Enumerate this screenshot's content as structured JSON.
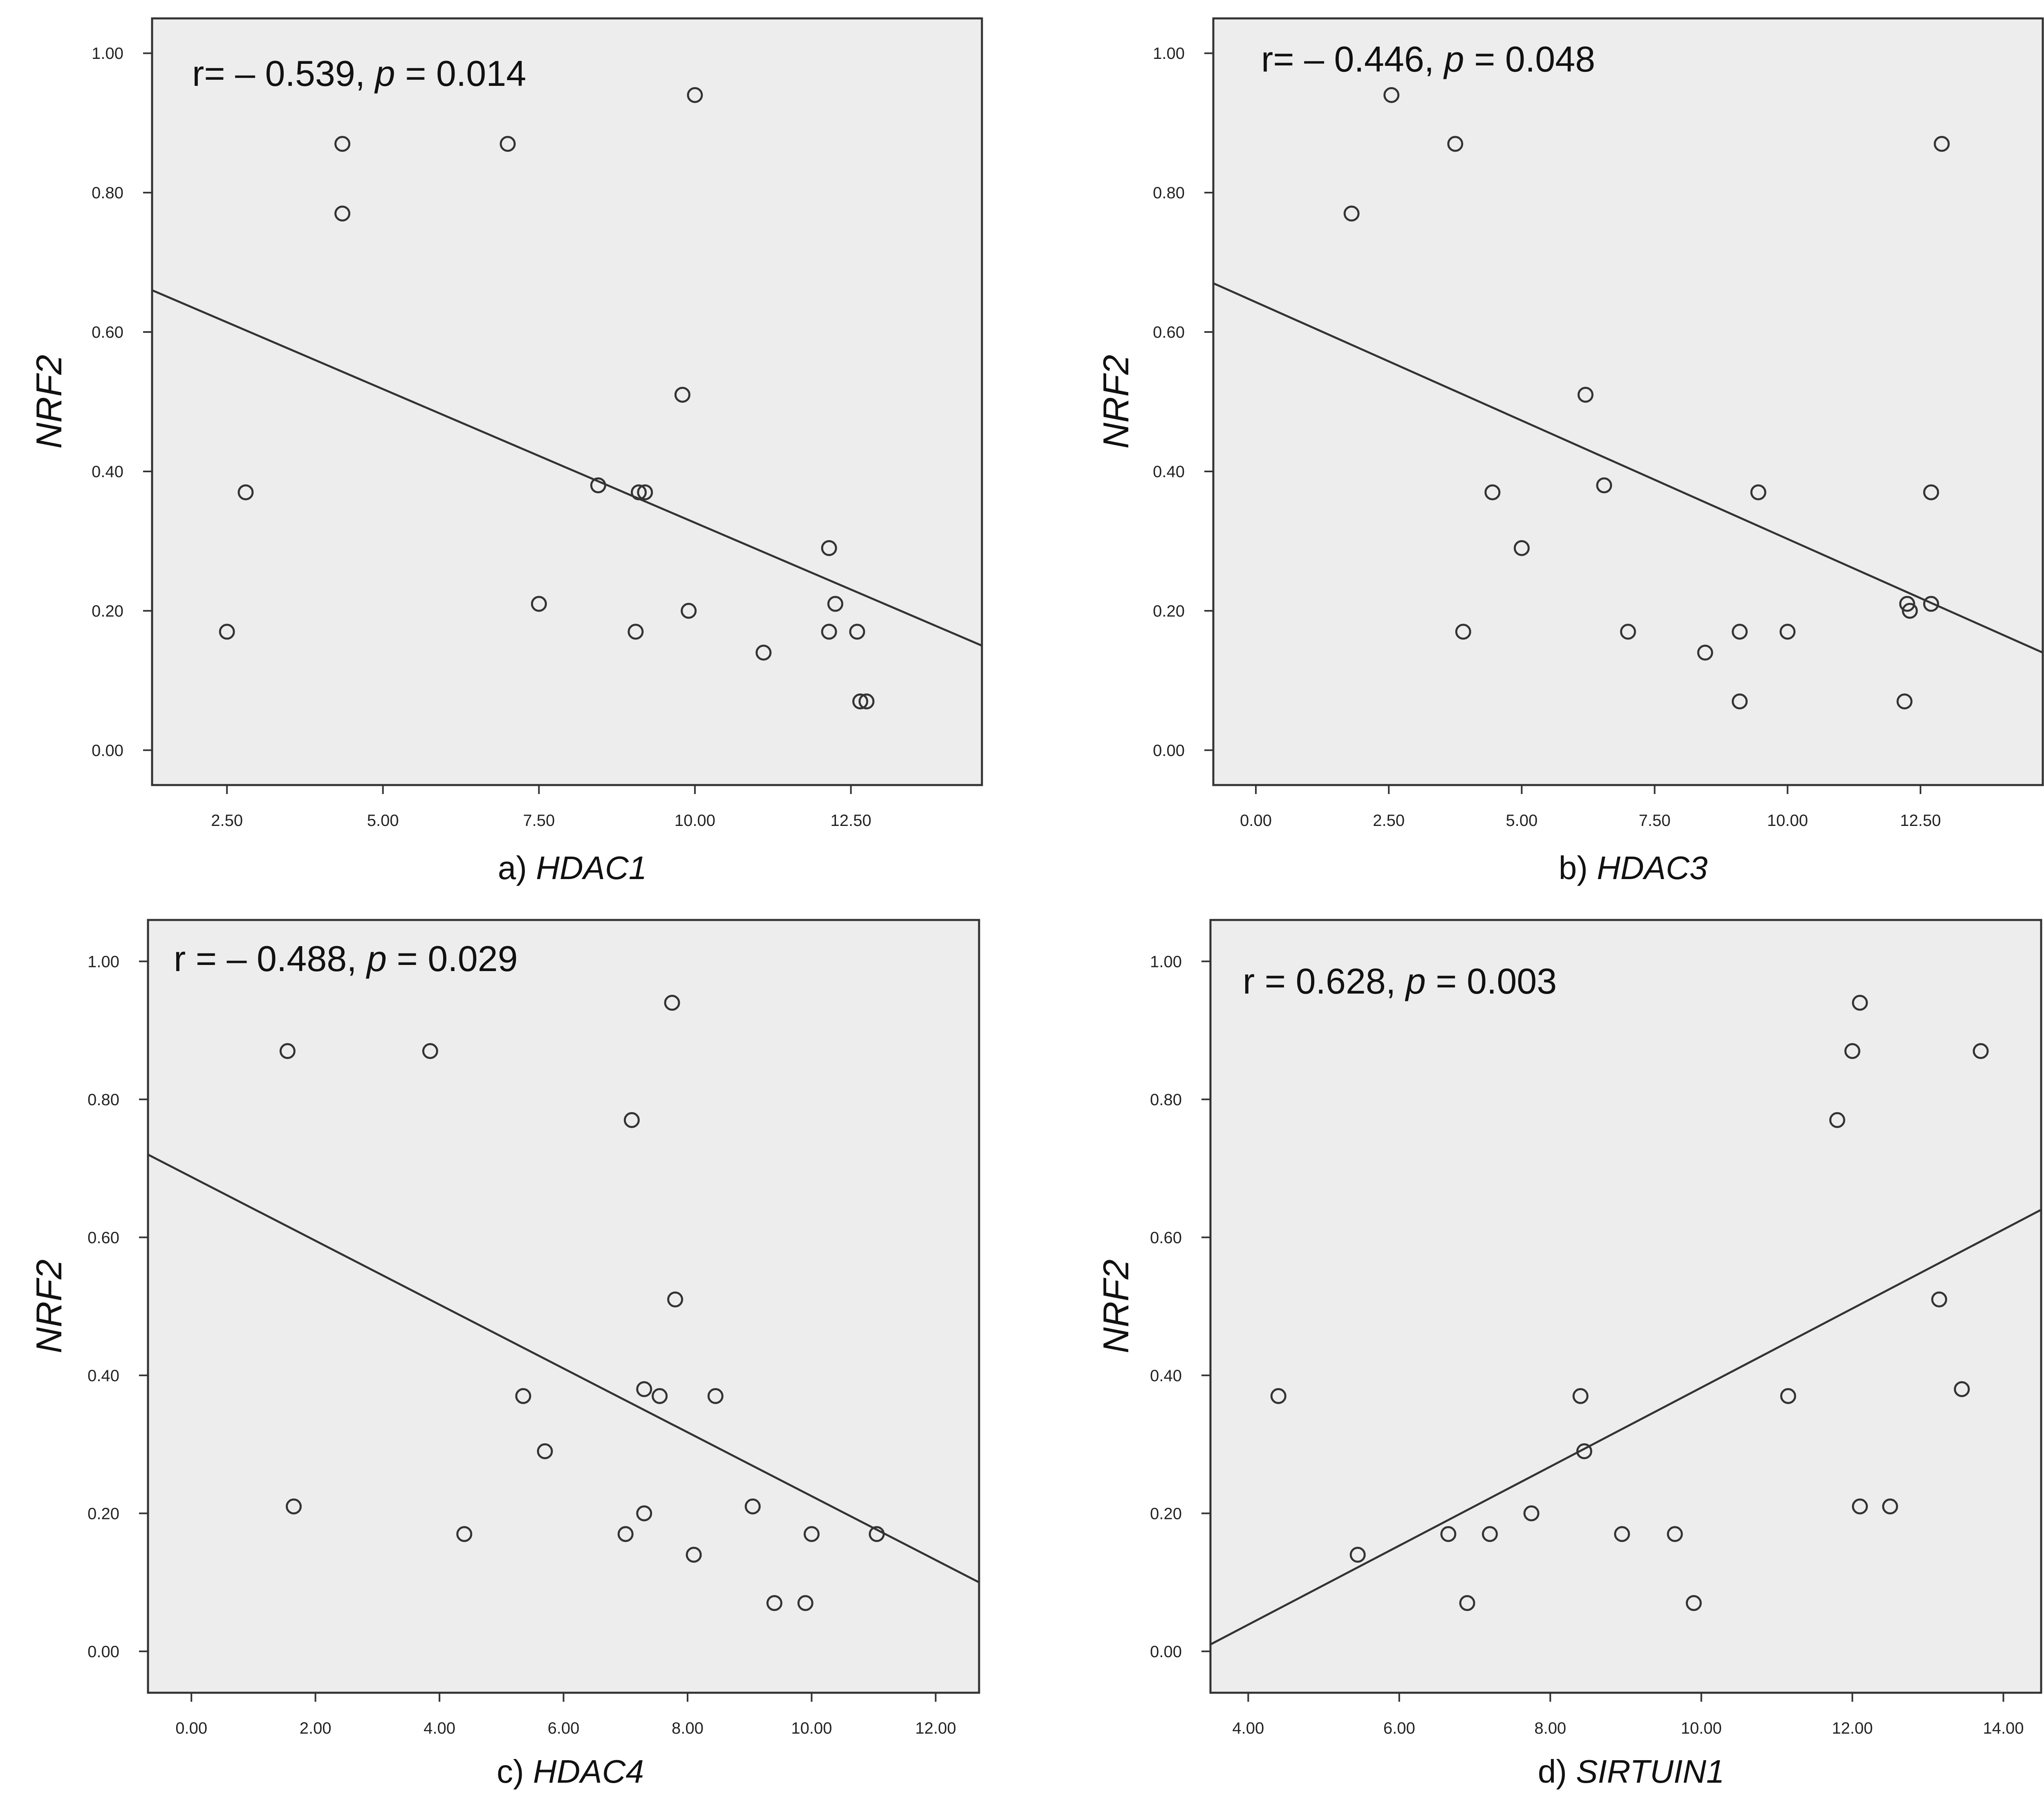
{
  "chart_data": [
    {
      "type": "scatter",
      "caption_prefix": "a) ",
      "caption_gene": "HDAC1",
      "ylabel": "NRF2",
      "annotation": {
        "r_prefix": "r= ",
        "r_value": "– 0.539",
        "sep": ", ",
        "p_label": "p",
        "p_rest": " = 0.014"
      },
      "xlim": [
        1.3,
        14.6
      ],
      "ylim": [
        -0.05,
        1.05
      ],
      "xticks": [
        2.5,
        5,
        7.5,
        10,
        12.5
      ],
      "xtick_labels": [
        "2.50",
        "5.00",
        "7.50",
        "10.00",
        "12.50"
      ],
      "yticks": [
        0,
        0.2,
        0.4,
        0.6,
        0.8,
        1.0
      ],
      "ytick_labels": [
        "0.00",
        "0.20",
        "0.40",
        "0.60",
        "0.80",
        "1.00"
      ],
      "x": [
        2.5,
        2.8,
        4.35,
        4.35,
        7.0,
        7.5,
        8.45,
        9.1,
        9.2,
        9.05,
        9.8,
        9.9,
        10.0,
        11.1,
        12.15,
        12.15,
        12.25,
        12.6,
        12.65,
        12.75
      ],
      "y": [
        0.17,
        0.37,
        0.87,
        0.77,
        0.87,
        0.21,
        0.38,
        0.37,
        0.37,
        0.17,
        0.51,
        0.2,
        0.94,
        0.14,
        0.29,
        0.17,
        0.21,
        0.17,
        0.07,
        0.07
      ],
      "fit": [
        [
          1.3,
          0.66
        ],
        [
          14.6,
          0.15
        ]
      ]
    },
    {
      "type": "scatter",
      "caption_prefix": "b) ",
      "caption_gene": "HDAC3",
      "ylabel": "NRF2",
      "annotation": {
        "r_prefix": "r= ",
        "r_value": "– 0.446",
        "sep": ", ",
        "p_label": "p",
        "p_rest": " = 0.048"
      },
      "xlim": [
        -0.8,
        14.8
      ],
      "ylim": [
        -0.05,
        1.05
      ],
      "xticks": [
        0,
        2.5,
        5,
        7.5,
        10,
        12.5
      ],
      "xtick_labels": [
        "0.00",
        "2.50",
        "5.00",
        "7.50",
        "10.00",
        "12.50"
      ],
      "yticks": [
        0,
        0.2,
        0.4,
        0.6,
        0.8,
        1.0
      ],
      "ytick_labels": [
        "0.00",
        "0.20",
        "0.40",
        "0.60",
        "0.80",
        "1.00"
      ],
      "x": [
        1.8,
        2.55,
        3.75,
        3.9,
        4.45,
        5.0,
        6.2,
        6.55,
        7.0,
        8.45,
        9.1,
        9.1,
        9.45,
        10.0,
        12.2,
        12.25,
        12.3,
        12.7,
        12.7,
        12.9
      ],
      "y": [
        0.77,
        0.94,
        0.87,
        0.17,
        0.37,
        0.29,
        0.51,
        0.38,
        0.17,
        0.14,
        0.17,
        0.07,
        0.37,
        0.17,
        0.07,
        0.21,
        0.2,
        0.37,
        0.21,
        0.87
      ],
      "fit": [
        [
          -0.8,
          0.67
        ],
        [
          14.8,
          0.14
        ]
      ]
    },
    {
      "type": "scatter",
      "caption_prefix": "c) ",
      "caption_gene": "HDAC4",
      "ylabel": "NRF2",
      "annotation": {
        "r_prefix": "r = ",
        "r_value": "– 0.488",
        "sep": ", ",
        "p_label": "p",
        "p_rest": " = 0.029"
      },
      "xlim": [
        -0.7,
        12.7
      ],
      "ylim": [
        -0.06,
        1.06
      ],
      "xticks": [
        0,
        2,
        4,
        6,
        8,
        10,
        12
      ],
      "xtick_labels": [
        "0.00",
        "2.00",
        "4.00",
        "6.00",
        "8.00",
        "10.00",
        "12.00"
      ],
      "yticks": [
        0,
        0.2,
        0.4,
        0.6,
        0.8,
        1.0
      ],
      "ytick_labels": [
        "0.00",
        "0.20",
        "0.40",
        "0.60",
        "0.80",
        "1.00"
      ],
      "x": [
        1.55,
        1.65,
        3.85,
        4.4,
        5.35,
        5.7,
        7.0,
        7.1,
        7.3,
        7.3,
        7.55,
        7.75,
        7.8,
        8.45,
        8.1,
        9.05,
        9.4,
        9.9,
        10.0,
        11.05
      ],
      "y": [
        0.87,
        0.21,
        0.87,
        0.17,
        0.37,
        0.29,
        0.17,
        0.77,
        0.38,
        0.2,
        0.37,
        0.94,
        0.51,
        0.37,
        0.14,
        0.21,
        0.07,
        0.07,
        0.17,
        0.17
      ],
      "fit": [
        [
          -0.7,
          0.72
        ],
        [
          12.7,
          0.1
        ]
      ]
    },
    {
      "type": "scatter",
      "caption_prefix": "d) ",
      "caption_gene": "SIRTUIN1",
      "ylabel": "NRF2",
      "annotation": {
        "r_prefix": "r = ",
        "r_value": "0.628",
        "sep": ", ",
        "p_label": "p",
        "p_rest": " = 0.003"
      },
      "xlim": [
        3.5,
        14.5
      ],
      "ylim": [
        -0.06,
        1.06
      ],
      "xticks": [
        4,
        6,
        8,
        10,
        12,
        14
      ],
      "xtick_labels": [
        "4.00",
        "6.00",
        "8.00",
        "10.00",
        "12.00",
        "14.00"
      ],
      "yticks": [
        0,
        0.2,
        0.4,
        0.6,
        0.8,
        1.0
      ],
      "ytick_labels": [
        "0.00",
        "0.20",
        "0.40",
        "0.60",
        "0.80",
        "1.00"
      ],
      "x": [
        4.4,
        5.45,
        6.65,
        6.9,
        7.2,
        7.75,
        8.4,
        8.45,
        8.95,
        9.65,
        9.9,
        11.15,
        11.8,
        12.0,
        12.1,
        12.1,
        12.5,
        13.15,
        13.45,
        13.7
      ],
      "y": [
        0.37,
        0.14,
        0.17,
        0.07,
        0.17,
        0.2,
        0.37,
        0.29,
        0.17,
        0.17,
        0.07,
        0.37,
        0.77,
        0.87,
        0.94,
        0.21,
        0.21,
        0.51,
        0.38,
        0.87
      ],
      "fit": [
        [
          3.5,
          0.01
        ],
        [
          14.5,
          0.64
        ]
      ]
    }
  ]
}
